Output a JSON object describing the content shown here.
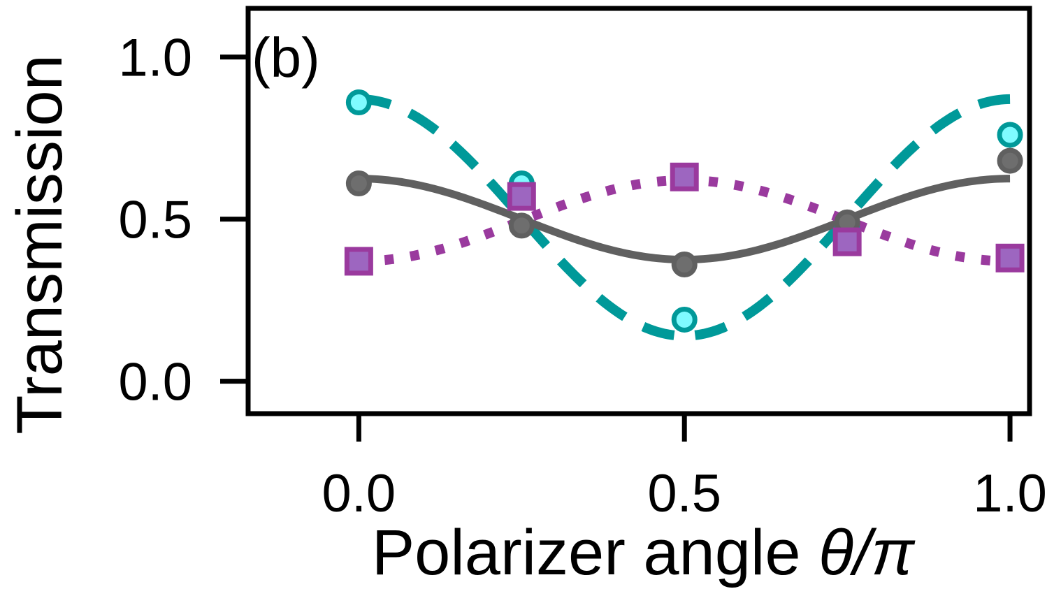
{
  "chart_data": {
    "type": "line",
    "panel_label": "(b)",
    "xlabel_text": "Polarizer angle ",
    "xlabel_symbol": "θ/π",
    "ylabel": "Transmission",
    "xlim": [
      -0.17,
      1.03
    ],
    "ylim": [
      -0.1,
      1.15
    ],
    "xticks": [
      0.0,
      0.5,
      1.0
    ],
    "xtick_labels": [
      "0.0",
      "0.5",
      "1.0"
    ],
    "yticks": [
      0.0,
      0.5,
      1.0
    ],
    "ytick_labels": [
      "0.0",
      "0.5",
      "1.0"
    ],
    "grid": false,
    "legend": "none",
    "series": [
      {
        "color": "#009999",
        "marker": "circle-open",
        "marker_fill": "#7ffbff",
        "line_style": "dashed",
        "points_x": [
          0.0,
          0.25,
          0.5,
          0.75,
          1.0
        ],
        "points_y": [
          0.86,
          0.61,
          0.19,
          0.47,
          0.76
        ],
        "curve": {
          "mean": 0.505,
          "amplitude": 0.365,
          "phase": 0.0
        }
      },
      {
        "color": "#606060",
        "marker": "circle",
        "marker_fill": "#6e6e6e",
        "line_style": "solid",
        "points_x": [
          0.0,
          0.25,
          0.5,
          0.75,
          1.0
        ],
        "points_y": [
          0.61,
          0.48,
          0.36,
          0.49,
          0.68
        ],
        "curve": {
          "mean": 0.5,
          "amplitude": 0.125,
          "phase": 0.0
        }
      },
      {
        "color": "#9a3a9e",
        "marker": "square",
        "marker_fill": "#9d66c0",
        "line_style": "dotted",
        "points_x": [
          0.0,
          0.25,
          0.5,
          0.75,
          1.0
        ],
        "points_y": [
          0.37,
          0.57,
          0.63,
          0.43,
          0.38
        ],
        "curve": {
          "mean": 0.495,
          "amplitude": -0.125,
          "phase": 0.0
        }
      }
    ]
  }
}
